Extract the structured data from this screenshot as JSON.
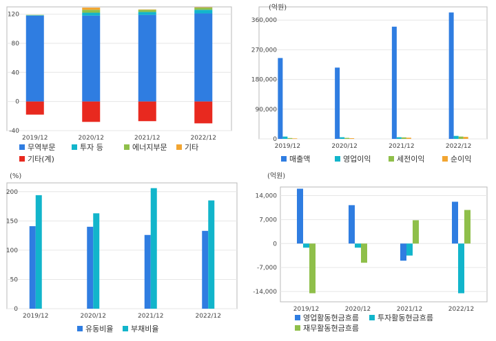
{
  "chart_data": [
    {
      "type": "bar",
      "stacked": true,
      "unit": "",
      "categories": [
        "2019/12",
        "2020/12",
        "2021/12",
        "2022/12"
      ],
      "ylim": [
        -40,
        130
      ],
      "yticks": [
        120,
        80,
        40,
        0,
        -40
      ],
      "grid": true,
      "legend_position": "bottom",
      "series": [
        {
          "name": "무역부문",
          "color": "#2f7de1",
          "values": [
            118,
            118,
            119,
            121
          ]
        },
        {
          "name": "투자 등",
          "color": "#12b5cb",
          "values": [
            0.5,
            4,
            4,
            5
          ]
        },
        {
          "name": "에너지부문",
          "color": "#8fbf4a",
          "values": [
            0.5,
            4,
            3,
            3
          ]
        },
        {
          "name": "기타",
          "color": "#f2a531",
          "values": [
            0,
            3,
            0.5,
            0.5
          ]
        },
        {
          "name": "기타(계)",
          "color": "#e8291f",
          "values": [
            -18,
            -28,
            -27,
            -30
          ]
        }
      ]
    },
    {
      "type": "bar",
      "unit": "(억원)",
      "categories": [
        "2019/12",
        "2020/12",
        "2021/12",
        "2022/12"
      ],
      "ylim": [
        0,
        400000
      ],
      "yticks": [
        "360,000",
        "270,000",
        "180,000",
        "90,000",
        "0"
      ],
      "grid": true,
      "legend_position": "bottom",
      "series": [
        {
          "name": "매출액",
          "color": "#2f7de1",
          "values": [
            245000,
            216000,
            340000,
            383000
          ]
        },
        {
          "name": "영업이익",
          "color": "#12b5cb",
          "values": [
            7000,
            5000,
            5000,
            9000
          ]
        },
        {
          "name": "세전이익",
          "color": "#8fbf4a",
          "values": [
            2500,
            3000,
            4500,
            7000
          ]
        },
        {
          "name": "순이익",
          "color": "#f2a531",
          "values": [
            1500,
            2000,
            3500,
            6000
          ]
        }
      ]
    },
    {
      "type": "bar",
      "unit": "(%)",
      "categories": [
        "2019/12",
        "2020/12",
        "2021/12",
        "2022/12"
      ],
      "ylim": [
        0,
        215
      ],
      "yticks": [
        200,
        150,
        100,
        50,
        0
      ],
      "grid": true,
      "legend_position": "bottom",
      "series": [
        {
          "name": "유동비율",
          "color": "#2f7de1",
          "values": [
            141,
            140,
            126,
            133
          ]
        },
        {
          "name": "부채비율",
          "color": "#12b5cb",
          "values": [
            194,
            163,
            206,
            185
          ]
        }
      ]
    },
    {
      "type": "bar",
      "unit": "(억원)",
      "categories": [
        "2019/12",
        "2020/12",
        "2021/12",
        "2022/12"
      ],
      "ylim": [
        -17000,
        16500
      ],
      "yticks": [
        "14,000",
        "7,000",
        "0",
        "-7,000",
        "-14,000"
      ],
      "grid": true,
      "legend_position": "bottom",
      "series": [
        {
          "name": "영업활동현금흐름",
          "color": "#2f7de1",
          "values": [
            16000,
            11200,
            -5000,
            12200
          ]
        },
        {
          "name": "투자활동현금흐름",
          "color": "#12b5cb",
          "values": [
            -1200,
            -1200,
            -3500,
            -14500
          ]
        },
        {
          "name": "재무활동현금흐름",
          "color": "#8fbf4a",
          "values": [
            -14500,
            -5600,
            6800,
            9800
          ]
        }
      ]
    }
  ]
}
